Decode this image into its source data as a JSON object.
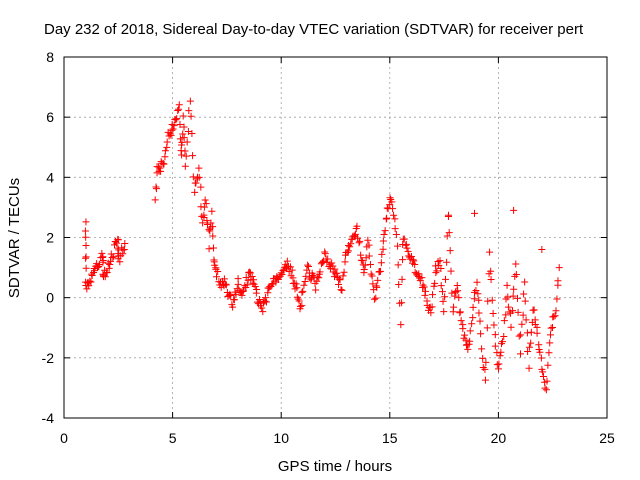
{
  "chart_data": {
    "type": "scatter",
    "title": "Day 232 of 2018, Sidereal Day-to-day VTEC variation (SDTVAR) for receiver pert",
    "xlabel": "GPS time / hours",
    "ylabel": "SDTVAR / TECUs",
    "xlim": [
      0,
      25
    ],
    "ylim": [
      -4,
      8
    ],
    "xticks": [
      0,
      5,
      10,
      15,
      20,
      25
    ],
    "yticks": [
      -4,
      -2,
      0,
      2,
      4,
      6,
      8
    ],
    "grid": true,
    "marker": "+",
    "series": [
      {
        "name": "SDTVAR",
        "color": "#ff0000",
        "trace": [
          [
            1.0,
            2.6
          ],
          [
            1.0,
            1.5
          ],
          [
            1.0,
            0.3
          ],
          [
            1.8,
            1.5
          ],
          [
            1.8,
            0.6
          ],
          [
            2.5,
            2.0
          ],
          [
            2.5,
            1.2
          ],
          [
            2.8,
            1.8
          ],
          [
            4.2,
            3.3
          ],
          [
            4.3,
            4.2
          ],
          [
            4.6,
            4.5
          ],
          [
            4.8,
            5.4
          ],
          [
            5.1,
            5.8
          ],
          [
            5.3,
            6.3
          ],
          [
            5.4,
            4.6
          ],
          [
            5.5,
            5.9
          ],
          [
            5.6,
            4.4
          ],
          [
            5.8,
            6.5
          ],
          [
            6.0,
            3.6
          ],
          [
            6.2,
            4.2
          ],
          [
            6.4,
            2.5
          ],
          [
            6.5,
            3.3
          ],
          [
            6.7,
            1.8
          ],
          [
            6.8,
            2.9
          ],
          [
            6.9,
            1.3
          ],
          [
            7.0,
            0.9
          ],
          [
            7.2,
            0.4
          ],
          [
            7.4,
            0.6
          ],
          [
            7.6,
            0.1
          ],
          [
            7.8,
            -0.2
          ],
          [
            8.0,
            0.5
          ],
          [
            8.2,
            0.0
          ],
          [
            8.5,
            0.8
          ],
          [
            8.8,
            0.3
          ],
          [
            9.1,
            -0.5
          ],
          [
            9.4,
            0.2
          ],
          [
            9.7,
            0.5
          ],
          [
            10.0,
            0.7
          ],
          [
            10.3,
            1.2
          ],
          [
            10.6,
            0.5
          ],
          [
            10.9,
            -0.3
          ],
          [
            11.2,
            1.0
          ],
          [
            11.6,
            0.4
          ],
          [
            12.0,
            1.5
          ],
          [
            12.4,
            0.9
          ],
          [
            12.8,
            0.3
          ],
          [
            13.0,
            1.6
          ],
          [
            13.5,
            2.3
          ],
          [
            13.8,
            0.8
          ],
          [
            14.0,
            1.9
          ],
          [
            14.3,
            -0.1
          ],
          [
            14.6,
            1.2
          ],
          [
            14.9,
            3.0
          ],
          [
            15.1,
            3.3
          ],
          [
            15.3,
            2.2
          ],
          [
            15.5,
            -0.8
          ],
          [
            15.6,
            1.9
          ],
          [
            16.5,
            0.5
          ],
          [
            16.9,
            -0.6
          ],
          [
            17.1,
            0.9
          ],
          [
            17.3,
            1.3
          ],
          [
            17.5,
            -0.6
          ],
          [
            17.7,
            2.6
          ],
          [
            17.9,
            -0.4
          ],
          [
            18.1,
            0.5
          ],
          [
            18.3,
            -0.9
          ],
          [
            18.6,
            -1.8
          ],
          [
            18.8,
            -0.5
          ],
          [
            19.0,
            0.6
          ],
          [
            19.2,
            -1.2
          ],
          [
            19.4,
            -2.9
          ],
          [
            19.6,
            1.5
          ],
          [
            19.8,
            -0.9
          ],
          [
            20.0,
            -2.4
          ],
          [
            20.2,
            -1.5
          ],
          [
            20.4,
            0.3
          ],
          [
            20.6,
            -0.9
          ],
          [
            20.8,
            1.2
          ],
          [
            21.0,
            -1.8
          ],
          [
            21.2,
            0.5
          ],
          [
            21.4,
            -2.2
          ],
          [
            21.6,
            -0.3
          ],
          [
            21.8,
            -1.3
          ],
          [
            22.0,
            -2.4
          ],
          [
            22.2,
            -3.2
          ],
          [
            22.4,
            -1.1
          ],
          [
            22.6,
            -0.6
          ],
          [
            22.8,
            1.0
          ]
        ],
        "isolated": [
          [
            18.9,
            2.8
          ],
          [
            20.7,
            2.9
          ],
          [
            22.0,
            1.6
          ],
          [
            17.7,
            2.7
          ]
        ]
      }
    ]
  }
}
